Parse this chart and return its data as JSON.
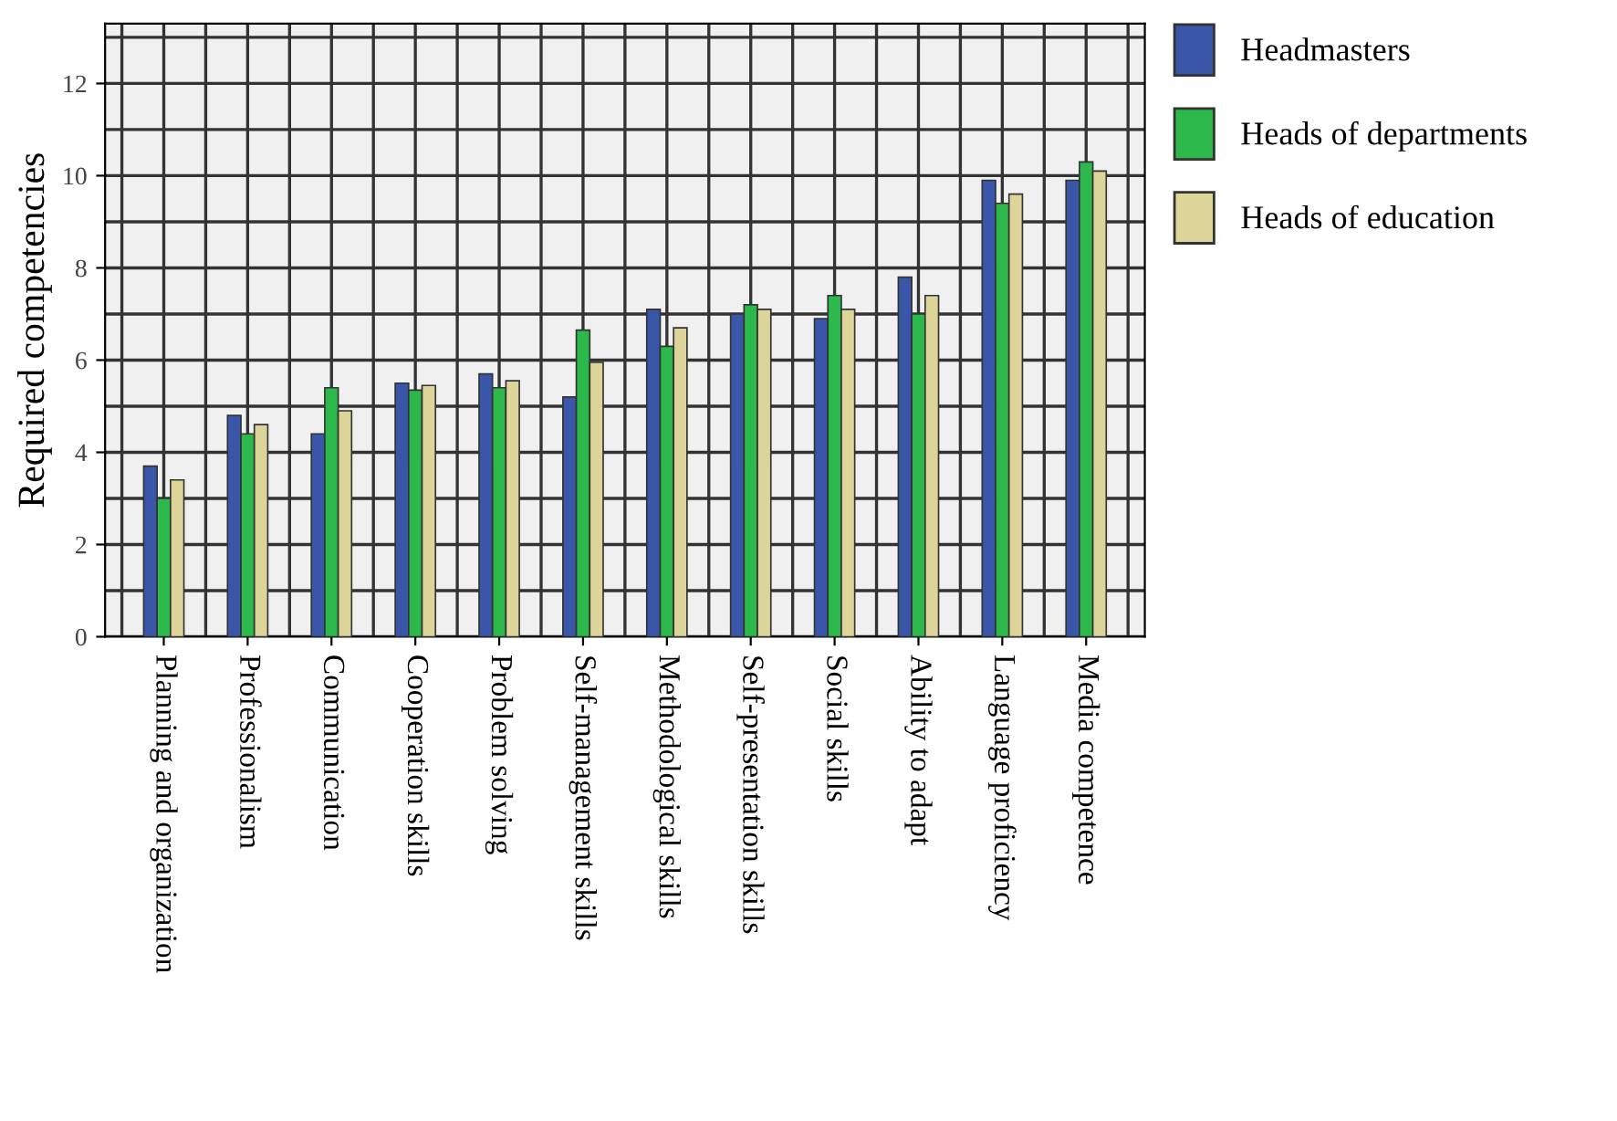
{
  "chart_data": {
    "type": "bar",
    "ylabel": "Required competencies",
    "categories": [
      "Planning and organization",
      "Professionalism",
      "Communication",
      "Cooperation skills",
      "Problem solving",
      "Self-management skills",
      "Methodological skills",
      "Self-presentation skills",
      "Social skills",
      "Ability to adapt",
      "Language proficiency",
      "Media competence"
    ],
    "series": [
      {
        "name": "Headmasters",
        "color": "#3a56a8",
        "values": [
          3.7,
          4.8,
          4.4,
          5.5,
          5.7,
          5.2,
          7.1,
          7.0,
          6.9,
          7.8,
          9.9,
          9.9
        ]
      },
      {
        "name": "Heads of departments",
        "color": "#2db84b",
        "values": [
          3.0,
          4.4,
          5.4,
          5.35,
          5.4,
          6.65,
          6.3,
          7.2,
          7.4,
          7.0,
          9.4,
          10.3
        ]
      },
      {
        "name": "Heads of education",
        "color": "#ddd49a",
        "values": [
          3.4,
          4.6,
          4.9,
          5.45,
          5.55,
          5.95,
          6.7,
          7.1,
          7.1,
          7.4,
          9.6,
          10.1
        ]
      }
    ],
    "ylim": [
      0,
      13.3
    ],
    "yticks": [
      0,
      2,
      4,
      6,
      8,
      10,
      12
    ],
    "grid": true,
    "legend": "right"
  }
}
